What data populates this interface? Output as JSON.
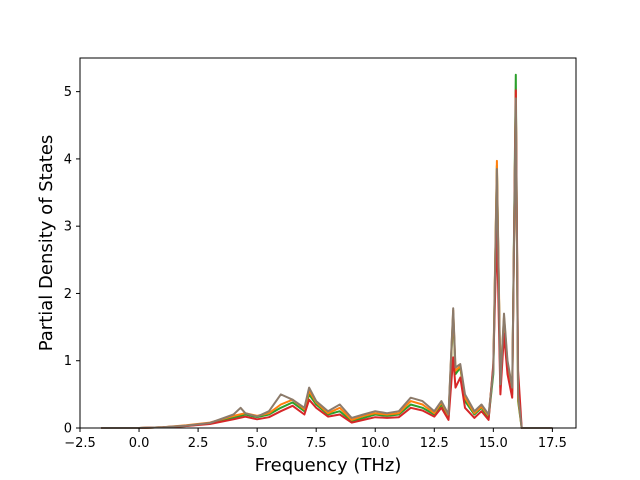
{
  "chart_data": {
    "type": "line",
    "xlabel": "Frequency (THz)",
    "ylabel": "Partial Density of States",
    "xlim": [
      -2.5,
      18.5
    ],
    "ylim": [
      0,
      5.5
    ],
    "xticks": [
      -2.5,
      0.0,
      2.5,
      5.0,
      7.5,
      10.0,
      12.5,
      15.0,
      17.5
    ],
    "xtick_labels": [
      "−2.5",
      "0.0",
      "2.5",
      "5.0",
      "7.5",
      "10.0",
      "12.5",
      "15.0",
      "17.5"
    ],
    "yticks": [
      0,
      1,
      2,
      3,
      4,
      5
    ],
    "ytick_labels": [
      "0",
      "1",
      "2",
      "3",
      "4",
      "5"
    ],
    "grid": false,
    "legend": "none",
    "series": [
      {
        "color": "#2ca02c",
        "points": [
          [
            -1.6,
            0
          ],
          [
            0,
            0
          ],
          [
            1,
            0.01
          ],
          [
            2,
            0.03
          ],
          [
            3,
            0.07
          ],
          [
            4,
            0.15
          ],
          [
            4.5,
            0.2
          ],
          [
            5,
            0.16
          ],
          [
            5.5,
            0.2
          ],
          [
            6,
            0.3
          ],
          [
            6.5,
            0.38
          ],
          [
            7,
            0.25
          ],
          [
            7.2,
            0.5
          ],
          [
            7.5,
            0.35
          ],
          [
            8,
            0.2
          ],
          [
            8.5,
            0.25
          ],
          [
            9,
            0.1
          ],
          [
            9.5,
            0.15
          ],
          [
            10,
            0.2
          ],
          [
            10.5,
            0.18
          ],
          [
            11,
            0.2
          ],
          [
            11.5,
            0.35
          ],
          [
            12,
            0.3
          ],
          [
            12.5,
            0.2
          ],
          [
            12.8,
            0.35
          ],
          [
            13.1,
            0.15
          ],
          [
            13.3,
            1.7
          ],
          [
            13.4,
            0.8
          ],
          [
            13.6,
            0.9
          ],
          [
            13.8,
            0.4
          ],
          [
            14.2,
            0.2
          ],
          [
            14.5,
            0.3
          ],
          [
            14.8,
            0.15
          ],
          [
            15.0,
            0.8
          ],
          [
            15.15,
            3.9
          ],
          [
            15.3,
            0.6
          ],
          [
            15.45,
            1.6
          ],
          [
            15.6,
            0.9
          ],
          [
            15.8,
            0.5
          ],
          [
            15.95,
            5.25
          ],
          [
            16.05,
            0.4
          ],
          [
            16.2,
            0
          ],
          [
            17.5,
            0
          ]
        ]
      },
      {
        "color": "#ff7f0e",
        "points": [
          [
            -1.6,
            0
          ],
          [
            0,
            0
          ],
          [
            1,
            0.01
          ],
          [
            2,
            0.04
          ],
          [
            3,
            0.08
          ],
          [
            4,
            0.18
          ],
          [
            4.5,
            0.22
          ],
          [
            5,
            0.18
          ],
          [
            5.5,
            0.22
          ],
          [
            6,
            0.35
          ],
          [
            6.5,
            0.42
          ],
          [
            7,
            0.28
          ],
          [
            7.2,
            0.55
          ],
          [
            7.5,
            0.38
          ],
          [
            8,
            0.22
          ],
          [
            8.5,
            0.3
          ],
          [
            9,
            0.12
          ],
          [
            9.5,
            0.18
          ],
          [
            10,
            0.22
          ],
          [
            10.5,
            0.2
          ],
          [
            11,
            0.22
          ],
          [
            11.5,
            0.4
          ],
          [
            12,
            0.35
          ],
          [
            12.5,
            0.22
          ],
          [
            12.8,
            0.38
          ],
          [
            13.1,
            0.18
          ],
          [
            13.3,
            1.75
          ],
          [
            13.4,
            0.85
          ],
          [
            13.6,
            0.92
          ],
          [
            13.8,
            0.45
          ],
          [
            14.2,
            0.22
          ],
          [
            14.5,
            0.32
          ],
          [
            14.8,
            0.18
          ],
          [
            15.0,
            0.9
          ],
          [
            15.15,
            3.97
          ],
          [
            15.3,
            0.7
          ],
          [
            15.45,
            1.65
          ],
          [
            15.6,
            0.95
          ],
          [
            15.8,
            0.55
          ],
          [
            15.95,
            5.0
          ],
          [
            16.05,
            0.45
          ],
          [
            16.2,
            0
          ],
          [
            17.5,
            0
          ]
        ]
      },
      {
        "color": "#d62728",
        "points": [
          [
            -1.6,
            0
          ],
          [
            0,
            0
          ],
          [
            1,
            0.01
          ],
          [
            2,
            0.03
          ],
          [
            3,
            0.06
          ],
          [
            4,
            0.13
          ],
          [
            4.5,
            0.17
          ],
          [
            5,
            0.13
          ],
          [
            5.5,
            0.16
          ],
          [
            6,
            0.25
          ],
          [
            6.5,
            0.33
          ],
          [
            7,
            0.2
          ],
          [
            7.2,
            0.42
          ],
          [
            7.5,
            0.3
          ],
          [
            8,
            0.17
          ],
          [
            8.5,
            0.2
          ],
          [
            9,
            0.08
          ],
          [
            9.5,
            0.12
          ],
          [
            10,
            0.16
          ],
          [
            10.5,
            0.15
          ],
          [
            11,
            0.16
          ],
          [
            11.5,
            0.3
          ],
          [
            12,
            0.26
          ],
          [
            12.5,
            0.17
          ],
          [
            12.8,
            0.3
          ],
          [
            13.1,
            0.12
          ],
          [
            13.3,
            1.05
          ],
          [
            13.4,
            0.6
          ],
          [
            13.6,
            0.75
          ],
          [
            13.8,
            0.3
          ],
          [
            14.2,
            0.15
          ],
          [
            14.5,
            0.25
          ],
          [
            14.8,
            0.12
          ],
          [
            15.0,
            0.95
          ],
          [
            15.15,
            2.95
          ],
          [
            15.3,
            0.5
          ],
          [
            15.45,
            1.4
          ],
          [
            15.6,
            0.8
          ],
          [
            15.8,
            0.45
          ],
          [
            15.95,
            5.02
          ],
          [
            16.05,
            0.85
          ],
          [
            16.2,
            0
          ],
          [
            17.5,
            0
          ]
        ]
      },
      {
        "color": "#8c7b6b",
        "points": [
          [
            -1.6,
            0
          ],
          [
            0,
            0
          ],
          [
            1,
            0.01
          ],
          [
            2,
            0.035
          ],
          [
            3,
            0.075
          ],
          [
            4,
            0.2
          ],
          [
            4.3,
            0.3
          ],
          [
            4.5,
            0.22
          ],
          [
            5,
            0.17
          ],
          [
            5.5,
            0.25
          ],
          [
            6,
            0.5
          ],
          [
            6.5,
            0.42
          ],
          [
            7,
            0.3
          ],
          [
            7.2,
            0.6
          ],
          [
            7.5,
            0.4
          ],
          [
            8,
            0.25
          ],
          [
            8.5,
            0.35
          ],
          [
            9,
            0.15
          ],
          [
            9.5,
            0.2
          ],
          [
            10,
            0.25
          ],
          [
            10.5,
            0.22
          ],
          [
            11,
            0.25
          ],
          [
            11.5,
            0.45
          ],
          [
            12,
            0.4
          ],
          [
            12.5,
            0.25
          ],
          [
            12.8,
            0.4
          ],
          [
            13.1,
            0.2
          ],
          [
            13.3,
            1.78
          ],
          [
            13.4,
            0.9
          ],
          [
            13.6,
            0.95
          ],
          [
            13.8,
            0.5
          ],
          [
            14.2,
            0.25
          ],
          [
            14.5,
            0.35
          ],
          [
            14.8,
            0.2
          ],
          [
            15.0,
            0.85
          ],
          [
            15.15,
            3.85
          ],
          [
            15.3,
            0.65
          ],
          [
            15.45,
            1.7
          ],
          [
            15.6,
            1.0
          ],
          [
            15.8,
            0.6
          ],
          [
            15.95,
            4.9
          ],
          [
            16.05,
            0.5
          ],
          [
            16.2,
            0
          ],
          [
            17.5,
            0
          ]
        ]
      }
    ]
  }
}
